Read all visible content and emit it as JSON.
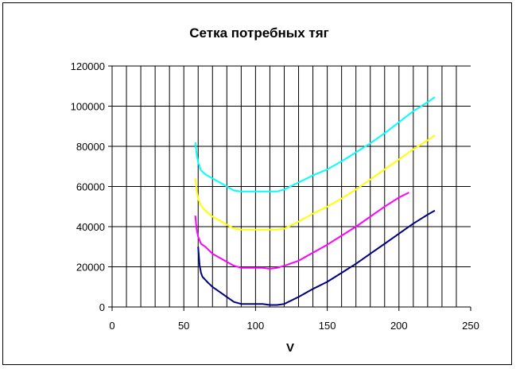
{
  "chart_data": {
    "type": "line",
    "title": "Сетка потребных тяг",
    "xlabel": "V",
    "ylabel": "",
    "xlim": [
      0,
      250
    ],
    "ylim": [
      0,
      120000
    ],
    "xticks": [
      0,
      50,
      100,
      150,
      200,
      250
    ],
    "yticks": [
      0,
      20000,
      40000,
      60000,
      80000,
      100000,
      120000
    ],
    "x_gridlines": [
      10,
      20,
      30,
      40,
      50,
      60,
      70,
      80,
      90,
      100,
      110,
      120,
      130,
      140,
      150,
      160,
      170,
      180,
      190,
      200,
      210,
      220,
      230,
      240
    ],
    "grid": true,
    "legend": "none",
    "series": [
      {
        "color": "#00FFFF",
        "x": [
          58,
          59,
          60,
          62,
          65,
          70,
          75,
          80,
          85,
          90,
          95,
          100,
          105,
          110,
          115,
          120,
          130,
          140,
          150,
          160,
          170,
          180,
          190,
          200,
          210,
          220,
          225
        ],
        "y": [
          82000,
          76000,
          72000,
          68000,
          66000,
          64000,
          62000,
          60000,
          58000,
          57500,
          57500,
          57500,
          57500,
          57500,
          57500,
          58500,
          62000,
          65500,
          68500,
          72500,
          77000,
          81500,
          86500,
          92000,
          97500,
          102000,
          104500
        ]
      },
      {
        "color": "#FFFF00",
        "x": [
          58,
          59,
          60,
          62,
          65,
          70,
          75,
          80,
          85,
          90,
          95,
          100,
          105,
          110,
          115,
          120,
          130,
          140,
          150,
          160,
          170,
          180,
          190,
          200,
          210,
          220,
          225
        ],
        "y": [
          64000,
          58000,
          54000,
          50500,
          48000,
          45000,
          43000,
          41000,
          39000,
          38500,
          38500,
          38500,
          38500,
          38500,
          38500,
          39000,
          42500,
          46500,
          50000,
          54000,
          58500,
          63500,
          68500,
          73500,
          78500,
          83000,
          85500
        ]
      },
      {
        "color": "#FF00FF",
        "x": [
          58,
          59,
          60,
          62,
          65,
          70,
          75,
          80,
          85,
          90,
          95,
          100,
          105,
          110,
          115,
          120,
          130,
          140,
          150,
          160,
          170,
          180,
          190,
          200,
          207
        ],
        "y": [
          45500,
          38500,
          35000,
          31500,
          30000,
          26500,
          24500,
          22500,
          20500,
          19500,
          19500,
          19500,
          19500,
          19000,
          19500,
          20500,
          23000,
          27000,
          31000,
          35500,
          40000,
          45000,
          50000,
          54500,
          57000
        ]
      },
      {
        "color": "#000080",
        "x": [
          60,
          61,
          62,
          63,
          65,
          67,
          70,
          75,
          80,
          85,
          90,
          95,
          100,
          105,
          110,
          115,
          120,
          130,
          140,
          150,
          160,
          170,
          180,
          190,
          200,
          210,
          220,
          225
        ],
        "y": [
          30000,
          21000,
          17000,
          15000,
          13500,
          12000,
          10000,
          7500,
          5000,
          2500,
          1500,
          1500,
          1500,
          1500,
          1000,
          1000,
          1500,
          5000,
          9000,
          12500,
          17000,
          21500,
          26500,
          31500,
          36500,
          41500,
          46000,
          48000
        ]
      }
    ]
  }
}
